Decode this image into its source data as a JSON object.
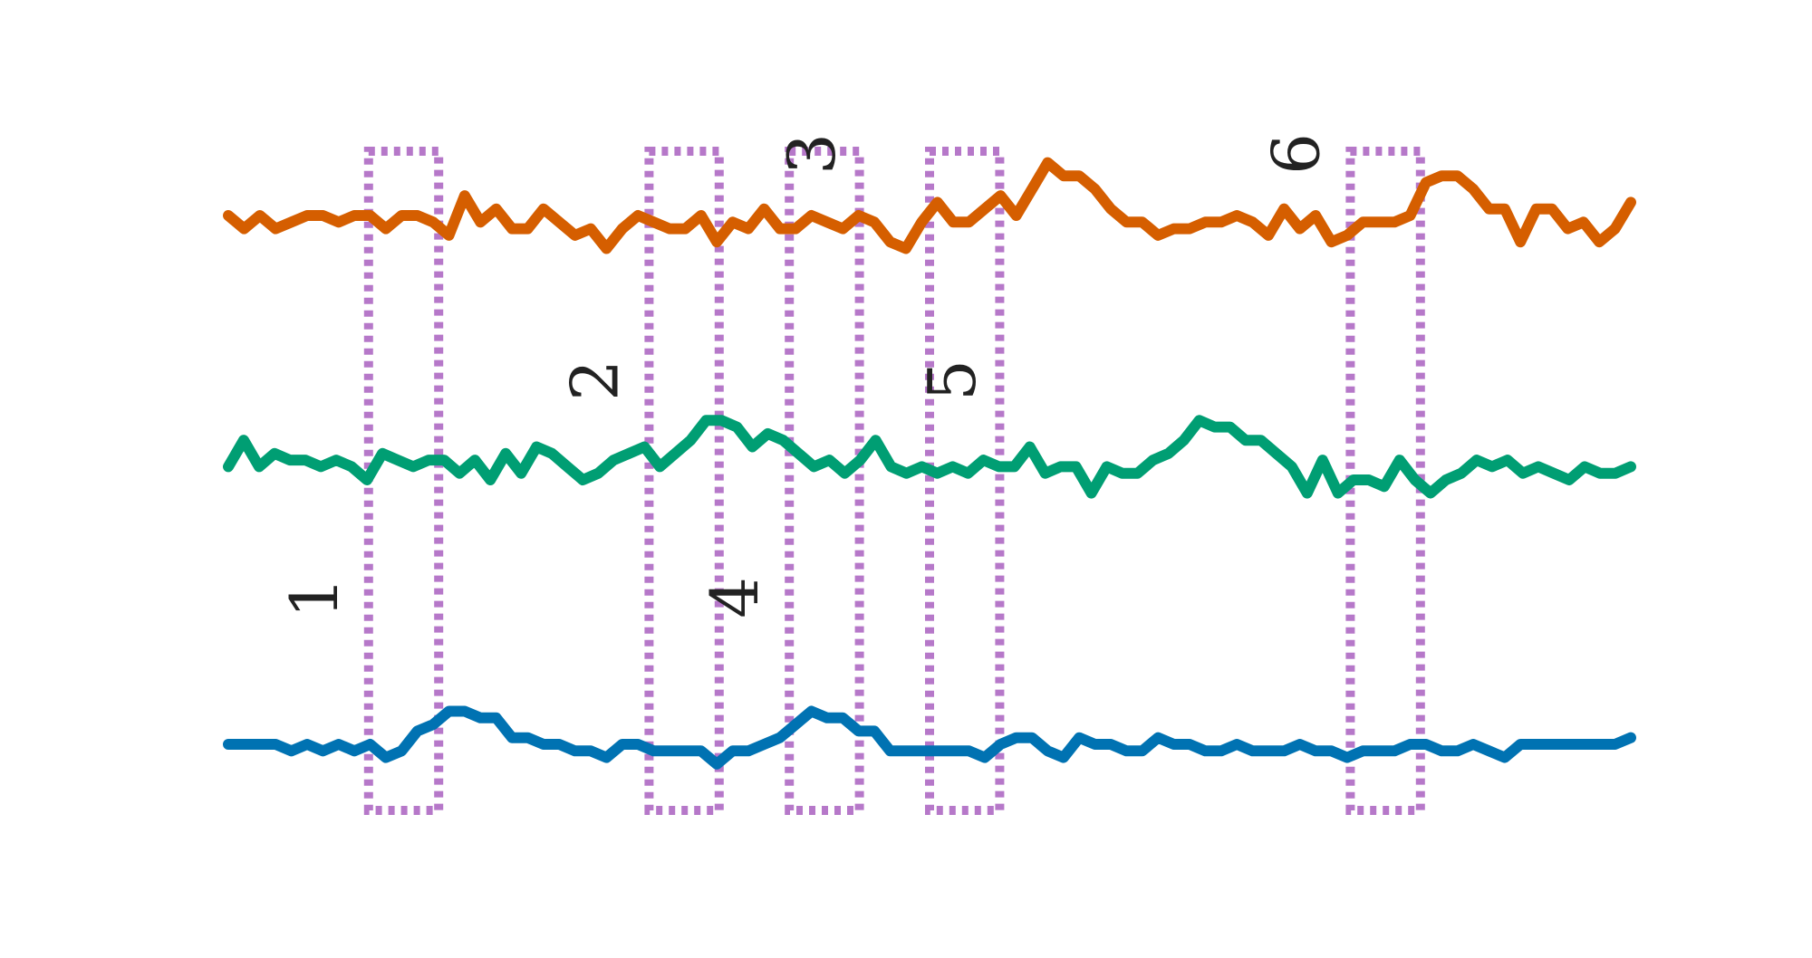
{
  "chart_data": {
    "type": "line",
    "title": "",
    "xlabel": "",
    "ylabel": "",
    "xlim": [
      0,
      100
    ],
    "grid": false,
    "legend": "none",
    "series": [
      {
        "color": "#D55E00",
        "y": [
          9.0,
          8.8,
          9.0,
          8.8,
          8.9,
          9.0,
          9.0,
          8.9,
          9.0,
          9.0,
          8.8,
          9.0,
          9.0,
          8.9,
          8.7,
          9.3,
          8.9,
          9.1,
          8.8,
          8.8,
          9.1,
          8.9,
          8.7,
          8.8,
          8.5,
          8.8,
          9.0,
          8.9,
          8.8,
          8.8,
          9.0,
          8.6,
          8.9,
          8.8,
          9.1,
          8.8,
          8.8,
          9.0,
          8.9,
          8.8,
          9.0,
          8.9,
          8.6,
          8.5,
          8.9,
          9.2,
          8.9,
          8.9,
          9.1,
          9.3,
          9.0,
          9.4,
          9.8,
          9.6,
          9.6,
          9.4,
          9.1,
          8.9,
          8.9,
          8.7,
          8.8,
          8.8,
          8.9,
          8.9,
          9.0,
          8.9,
          8.7,
          9.1,
          8.8,
          9.0,
          8.6,
          8.7,
          8.9,
          8.9,
          8.9,
          9.0,
          9.5,
          9.6,
          9.6,
          9.4,
          9.1,
          9.1,
          8.6,
          9.1,
          9.1,
          8.8,
          8.9,
          8.6,
          8.8,
          9.2
        ]
      },
      {
        "color": "#009E73",
        "y": [
          5.2,
          5.6,
          5.2,
          5.4,
          5.3,
          5.3,
          5.2,
          5.3,
          5.2,
          5.0,
          5.4,
          5.3,
          5.2,
          5.3,
          5.3,
          5.1,
          5.3,
          5.0,
          5.4,
          5.1,
          5.5,
          5.4,
          5.2,
          5.0,
          5.1,
          5.3,
          5.4,
          5.5,
          5.2,
          5.4,
          5.6,
          5.9,
          5.9,
          5.8,
          5.5,
          5.7,
          5.6,
          5.4,
          5.2,
          5.3,
          5.1,
          5.3,
          5.6,
          5.2,
          5.1,
          5.2,
          5.1,
          5.2,
          5.1,
          5.3,
          5.2,
          5.2,
          5.5,
          5.1,
          5.2,
          5.2,
          4.8,
          5.2,
          5.1,
          5.1,
          5.3,
          5.4,
          5.6,
          5.9,
          5.8,
          5.8,
          5.6,
          5.6,
          5.4,
          5.2,
          4.8,
          5.3,
          4.8,
          5.0,
          5.0,
          4.9,
          5.3,
          5.0,
          4.8,
          5.0,
          5.1,
          5.3,
          5.2,
          5.3,
          5.1,
          5.2,
          5.1,
          5.0,
          5.2,
          5.1,
          5.1,
          5.2
        ]
      },
      {
        "color": "#0072B2",
        "y": [
          1.0,
          1.0,
          1.0,
          1.0,
          0.9,
          1.0,
          0.9,
          1.0,
          0.9,
          1.0,
          0.8,
          0.9,
          1.2,
          1.3,
          1.5,
          1.5,
          1.4,
          1.4,
          1.1,
          1.1,
          1.0,
          1.0,
          0.9,
          0.9,
          0.8,
          1.0,
          1.0,
          0.9,
          0.9,
          0.9,
          0.9,
          0.7,
          0.9,
          0.9,
          1.0,
          1.1,
          1.3,
          1.5,
          1.4,
          1.4,
          1.2,
          1.2,
          0.9,
          0.9,
          0.9,
          0.9,
          0.9,
          0.9,
          0.8,
          1.0,
          1.1,
          1.1,
          0.9,
          0.8,
          1.1,
          1.0,
          1.0,
          0.9,
          0.9,
          1.1,
          1.0,
          1.0,
          0.9,
          0.9,
          1.0,
          0.9,
          0.9,
          0.9,
          1.0,
          0.9,
          0.9,
          0.8,
          0.9,
          0.9,
          0.9,
          1.0,
          1.0,
          0.9,
          0.9,
          1.0,
          0.9,
          0.8,
          1.0,
          1.0,
          1.0,
          1.0,
          1.0,
          1.0,
          1.0,
          1.1
        ]
      }
    ],
    "windows": [
      {
        "label": "1",
        "x_start": 10,
        "x_end": 15
      },
      {
        "label": "2",
        "x_start": 30,
        "x_end": 35
      },
      {
        "label": "3",
        "x_start": 40,
        "x_end": 45
      },
      {
        "label": "4",
        "x_start": 40,
        "x_end": 45
      },
      {
        "label": "5",
        "x_start": 50,
        "x_end": 55
      },
      {
        "label": "6",
        "x_start": 80,
        "x_end": 85
      }
    ],
    "window_style": {
      "color": "#B678C9"
    }
  }
}
